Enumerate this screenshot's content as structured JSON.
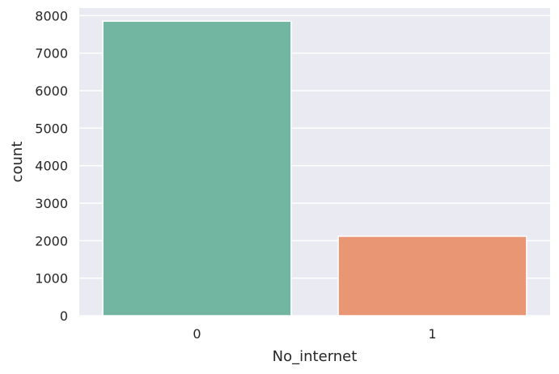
{
  "chart_data": {
    "type": "bar",
    "categories": [
      "0",
      "1"
    ],
    "values": [
      7852,
      2118
    ],
    "xlabel": "No_internet",
    "ylabel": "count",
    "ylim": [
      0,
      8200
    ],
    "yticks": [
      0,
      1000,
      2000,
      3000,
      4000,
      5000,
      6000,
      7000,
      8000
    ],
    "grid": true,
    "colors": [
      "#72b6a1",
      "#e99675"
    ],
    "background": "#eaeaf2",
    "grid_color": "#ffffff"
  }
}
